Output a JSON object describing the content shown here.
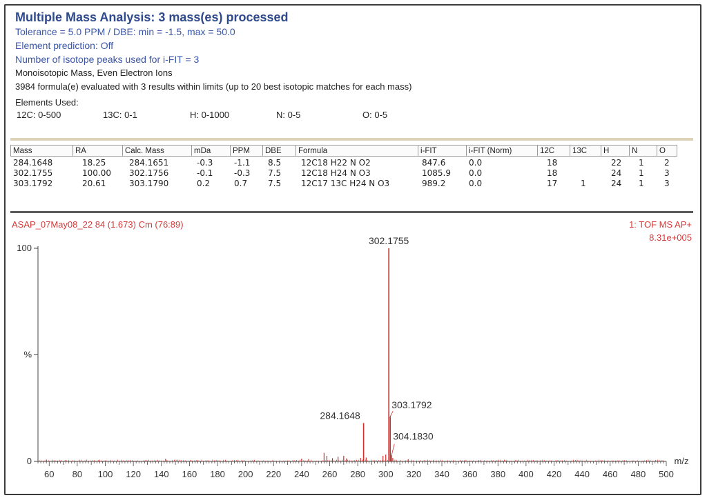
{
  "header": {
    "title": "Multiple Mass Analysis: 3 mass(es) processed",
    "tolerance": "Tolerance = 5.0 PPM   /  DBE: min = -1.5, max = 50.0",
    "prediction": "Element prediction: Off",
    "isotope": "Number of isotope peaks used for i-FIT = 3",
    "mode": "Monoisotopic Mass, Even Electron Ions",
    "evaluated": "3984 formula(e) evaluated with 3 results within limits (up to 20 best isotopic matches for each mass)",
    "elements_label": "Elements Used:",
    "elements": [
      "12C: 0-500",
      "13C: 0-1",
      "H: 0-1000",
      "N: 0-5",
      "O: 0-5"
    ]
  },
  "table": {
    "columns": [
      "Mass",
      "RA",
      "Calc. Mass",
      "mDa",
      "PPM",
      "DBE",
      "Formula",
      "i-FIT",
      "i-FIT (Norm)",
      "12C",
      "13C",
      "H",
      "N",
      "O"
    ],
    "rows": [
      [
        "284.1648",
        "18.25",
        "284.1651",
        "-0.3",
        "-1.1",
        "8.5",
        "12C18 H22 N O2",
        "847.6",
        "0.0",
        "18",
        "",
        "22",
        "1",
        "2"
      ],
      [
        "302.1755",
        "100.00",
        "302.1756",
        "-0.1",
        "-0.3",
        "7.5",
        "12C18 H24 N O3",
        "1085.9",
        "0.0",
        "18",
        "",
        "24",
        "1",
        "3"
      ],
      [
        "303.1792",
        "20.61",
        "303.1790",
        "0.2",
        "0.7",
        "7.5",
        "12C17 13C H24 N O3",
        "989.2",
        "0.0",
        "17",
        "1",
        "24",
        "1",
        "3"
      ]
    ]
  },
  "chart_data": {
    "type": "bar",
    "sample_label": "ASAP_07May08_22 84 (1.673) Cm (76:89)",
    "instrument_label": "1: TOF MS AP+",
    "intensity_label": "8.31e+005",
    "xlabel": "m/z",
    "ylabel": "%",
    "xlim": [
      52,
      500
    ],
    "ylim": [
      0,
      100
    ],
    "x_ticks": [
      60,
      80,
      100,
      120,
      140,
      160,
      180,
      200,
      220,
      240,
      260,
      280,
      300,
      320,
      340,
      360,
      380,
      400,
      420,
      440,
      460,
      480,
      500
    ],
    "y_ticks": [
      {
        "value": 0,
        "label": "0"
      },
      {
        "value": 50,
        "label": "%"
      },
      {
        "value": 100,
        "label": "100"
      }
    ],
    "color": "#d12e2e",
    "labeled_peaks": [
      {
        "x": 302.1755,
        "y": 100,
        "label": "302.1755"
      },
      {
        "x": 303.1792,
        "y": 21,
        "label": "303.1792"
      },
      {
        "x": 284.1648,
        "y": 18,
        "label": "284.1648"
      },
      {
        "x": 304.183,
        "y": 3,
        "label": "304.1830"
      }
    ],
    "minor_peaks": [
      [
        58,
        0.8
      ],
      [
        72,
        0.6
      ],
      [
        95,
        0.5
      ],
      [
        143,
        1.2
      ],
      [
        161,
        0.6
      ],
      [
        199,
        0.5
      ],
      [
        240,
        1.3
      ],
      [
        245,
        1.1
      ],
      [
        256,
        4.0
      ],
      [
        258,
        2.6
      ],
      [
        262,
        1.5
      ],
      [
        266,
        2.2
      ],
      [
        270,
        2.6
      ],
      [
        272,
        1.4
      ],
      [
        282,
        1.6
      ],
      [
        286,
        1.8
      ],
      [
        298,
        2.6
      ],
      [
        300,
        3.2
      ],
      [
        305,
        1.6
      ],
      [
        316,
        1.0
      ]
    ]
  }
}
